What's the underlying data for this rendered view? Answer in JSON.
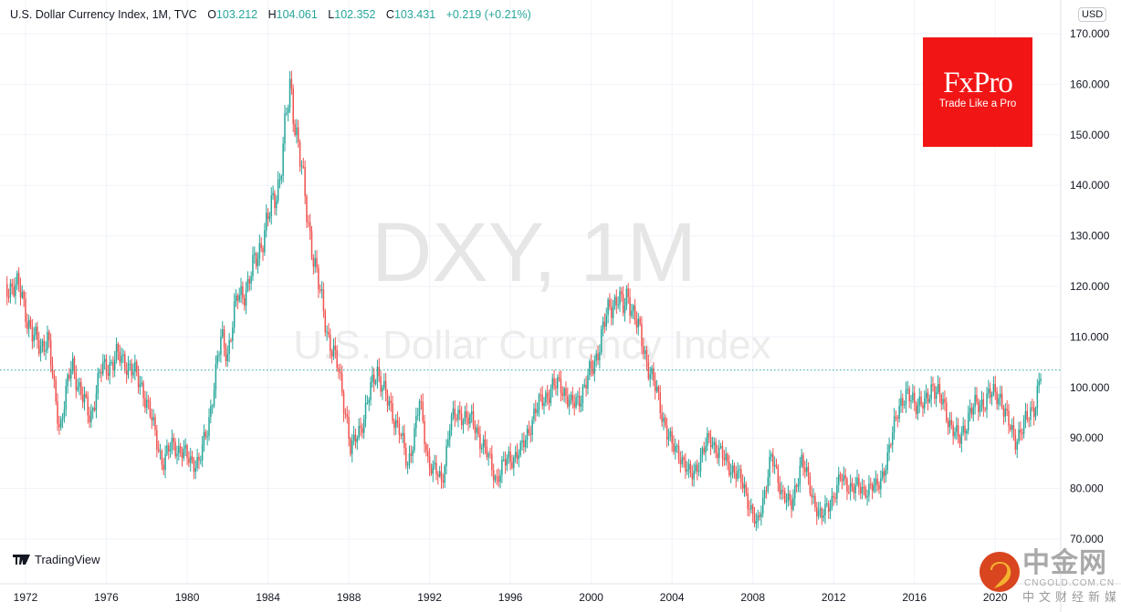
{
  "legend": {
    "title": "U.S. Dollar Currency Index, 1M, TVC",
    "open_label": "O",
    "open": "103.212",
    "high_label": "H",
    "high": "104.061",
    "low_label": "L",
    "low": "102.352",
    "close_label": "C",
    "close": "103.431",
    "change": "+0.219 (+0.21%)"
  },
  "currency_button": "USD",
  "fxpro": {
    "name": "FxPro",
    "tagline": "Trade Like a Pro"
  },
  "tradingview": "TradingView",
  "watermark": {
    "symbol": "DXY, 1M",
    "name": "U.S. Dollar Currency Index"
  },
  "cngold": {
    "name": "中金网",
    "url": "CNGOLD.COM.CN",
    "tagline": "中文财经新媒体"
  },
  "colors": {
    "up": "#26a69a",
    "down": "#ef5350",
    "price_line": "#26a69a",
    "grid": "#f0f3fa"
  },
  "chart_data": {
    "type": "candlestick",
    "interval": "1M",
    "y_ticks": [
      "70.000",
      "80.000",
      "90.000",
      "100.000",
      "110.000",
      "120.000",
      "130.000",
      "140.000",
      "150.000",
      "160.000",
      "170.000"
    ],
    "ylim": [
      70,
      170
    ],
    "x_ticks": [
      "1972",
      "1976",
      "1980",
      "1984",
      "1988",
      "1992",
      "1996",
      "2000",
      "2004",
      "2008",
      "2012",
      "2016",
      "2020"
    ],
    "xlim": [
      1971.0,
      2022.3
    ],
    "last_price": 103.431,
    "grid": true,
    "approx_close_points": [
      [
        1971.0,
        120.5
      ],
      [
        1971.8,
        119
      ],
      [
        1972.3,
        110
      ],
      [
        1972.7,
        108.5
      ],
      [
        1973.1,
        109.5
      ],
      [
        1973.4,
        100
      ],
      [
        1973.7,
        92
      ],
      [
        1974.3,
        105
      ],
      [
        1974.8,
        98
      ],
      [
        1975.2,
        94
      ],
      [
        1975.7,
        103
      ],
      [
        1976.5,
        106
      ],
      [
        1977.0,
        105
      ],
      [
        1977.8,
        100
      ],
      [
        1978.2,
        94
      ],
      [
        1978.8,
        85
      ],
      [
        1979.3,
        89
      ],
      [
        1980.0,
        86
      ],
      [
        1980.6,
        85
      ],
      [
        1981.0,
        92
      ],
      [
        1981.7,
        110
      ],
      [
        1982.0,
        107
      ],
      [
        1982.5,
        118
      ],
      [
        1983.0,
        120
      ],
      [
        1983.6,
        128
      ],
      [
        1984.0,
        133
      ],
      [
        1984.6,
        142
      ],
      [
        1985.1,
        160
      ],
      [
        1985.5,
        148
      ],
      [
        1985.9,
        135
      ],
      [
        1986.5,
        120
      ],
      [
        1987.0,
        110
      ],
      [
        1987.5,
        103
      ],
      [
        1987.9,
        94
      ],
      [
        1988.1,
        87
      ],
      [
        1988.8,
        95
      ],
      [
        1989.4,
        104
      ],
      [
        1989.9,
        97
      ],
      [
        1990.5,
        92
      ],
      [
        1990.9,
        84
      ],
      [
        1991.5,
        97
      ],
      [
        1991.9,
        86
      ],
      [
        1992.6,
        81
      ],
      [
        1993.0,
        93
      ],
      [
        1993.6,
        95
      ],
      [
        1994.3,
        92
      ],
      [
        1995.3,
        82
      ],
      [
        1995.9,
        86
      ],
      [
        1996.5,
        87
      ],
      [
        1997.0,
        93
      ],
      [
        1997.6,
        98
      ],
      [
        1998.5,
        101
      ],
      [
        1999.0,
        96
      ],
      [
        1999.7,
        100
      ],
      [
        2000.3,
        107
      ],
      [
        2000.9,
        116
      ],
      [
        2001.3,
        118
      ],
      [
        2001.6,
        115
      ],
      [
        2001.8,
        119
      ],
      [
        2002.5,
        109
      ],
      [
        2003.0,
        102
      ],
      [
        2003.5,
        95
      ],
      [
        2004.0,
        88
      ],
      [
        2004.4,
        87
      ],
      [
        2004.9,
        82
      ],
      [
        2005.9,
        90
      ],
      [
        2006.5,
        86
      ],
      [
        2007.0,
        84
      ],
      [
        2007.6,
        80
      ],
      [
        2008.2,
        72
      ],
      [
        2008.9,
        86
      ],
      [
        2009.4,
        80
      ],
      [
        2009.9,
        76
      ],
      [
        2010.4,
        86
      ],
      [
        2010.9,
        79
      ],
      [
        2011.4,
        74
      ],
      [
        2012.4,
        82
      ],
      [
        2013.0,
        80
      ],
      [
        2014.1,
        80
      ],
      [
        2014.7,
        86
      ],
      [
        2015.2,
        97
      ],
      [
        2015.9,
        98
      ],
      [
        2016.5,
        96
      ],
      [
        2016.9,
        101
      ],
      [
        2017.9,
        92
      ],
      [
        2018.2,
        89
      ],
      [
        2018.7,
        95
      ],
      [
        2019.6,
        98
      ],
      [
        2020.2,
        99
      ],
      [
        2020.6,
        93
      ],
      [
        2021.0,
        90
      ],
      [
        2021.4,
        92
      ],
      [
        2021.8,
        96
      ],
      [
        2022.0,
        97
      ],
      [
        2022.3,
        103.4
      ]
    ]
  }
}
